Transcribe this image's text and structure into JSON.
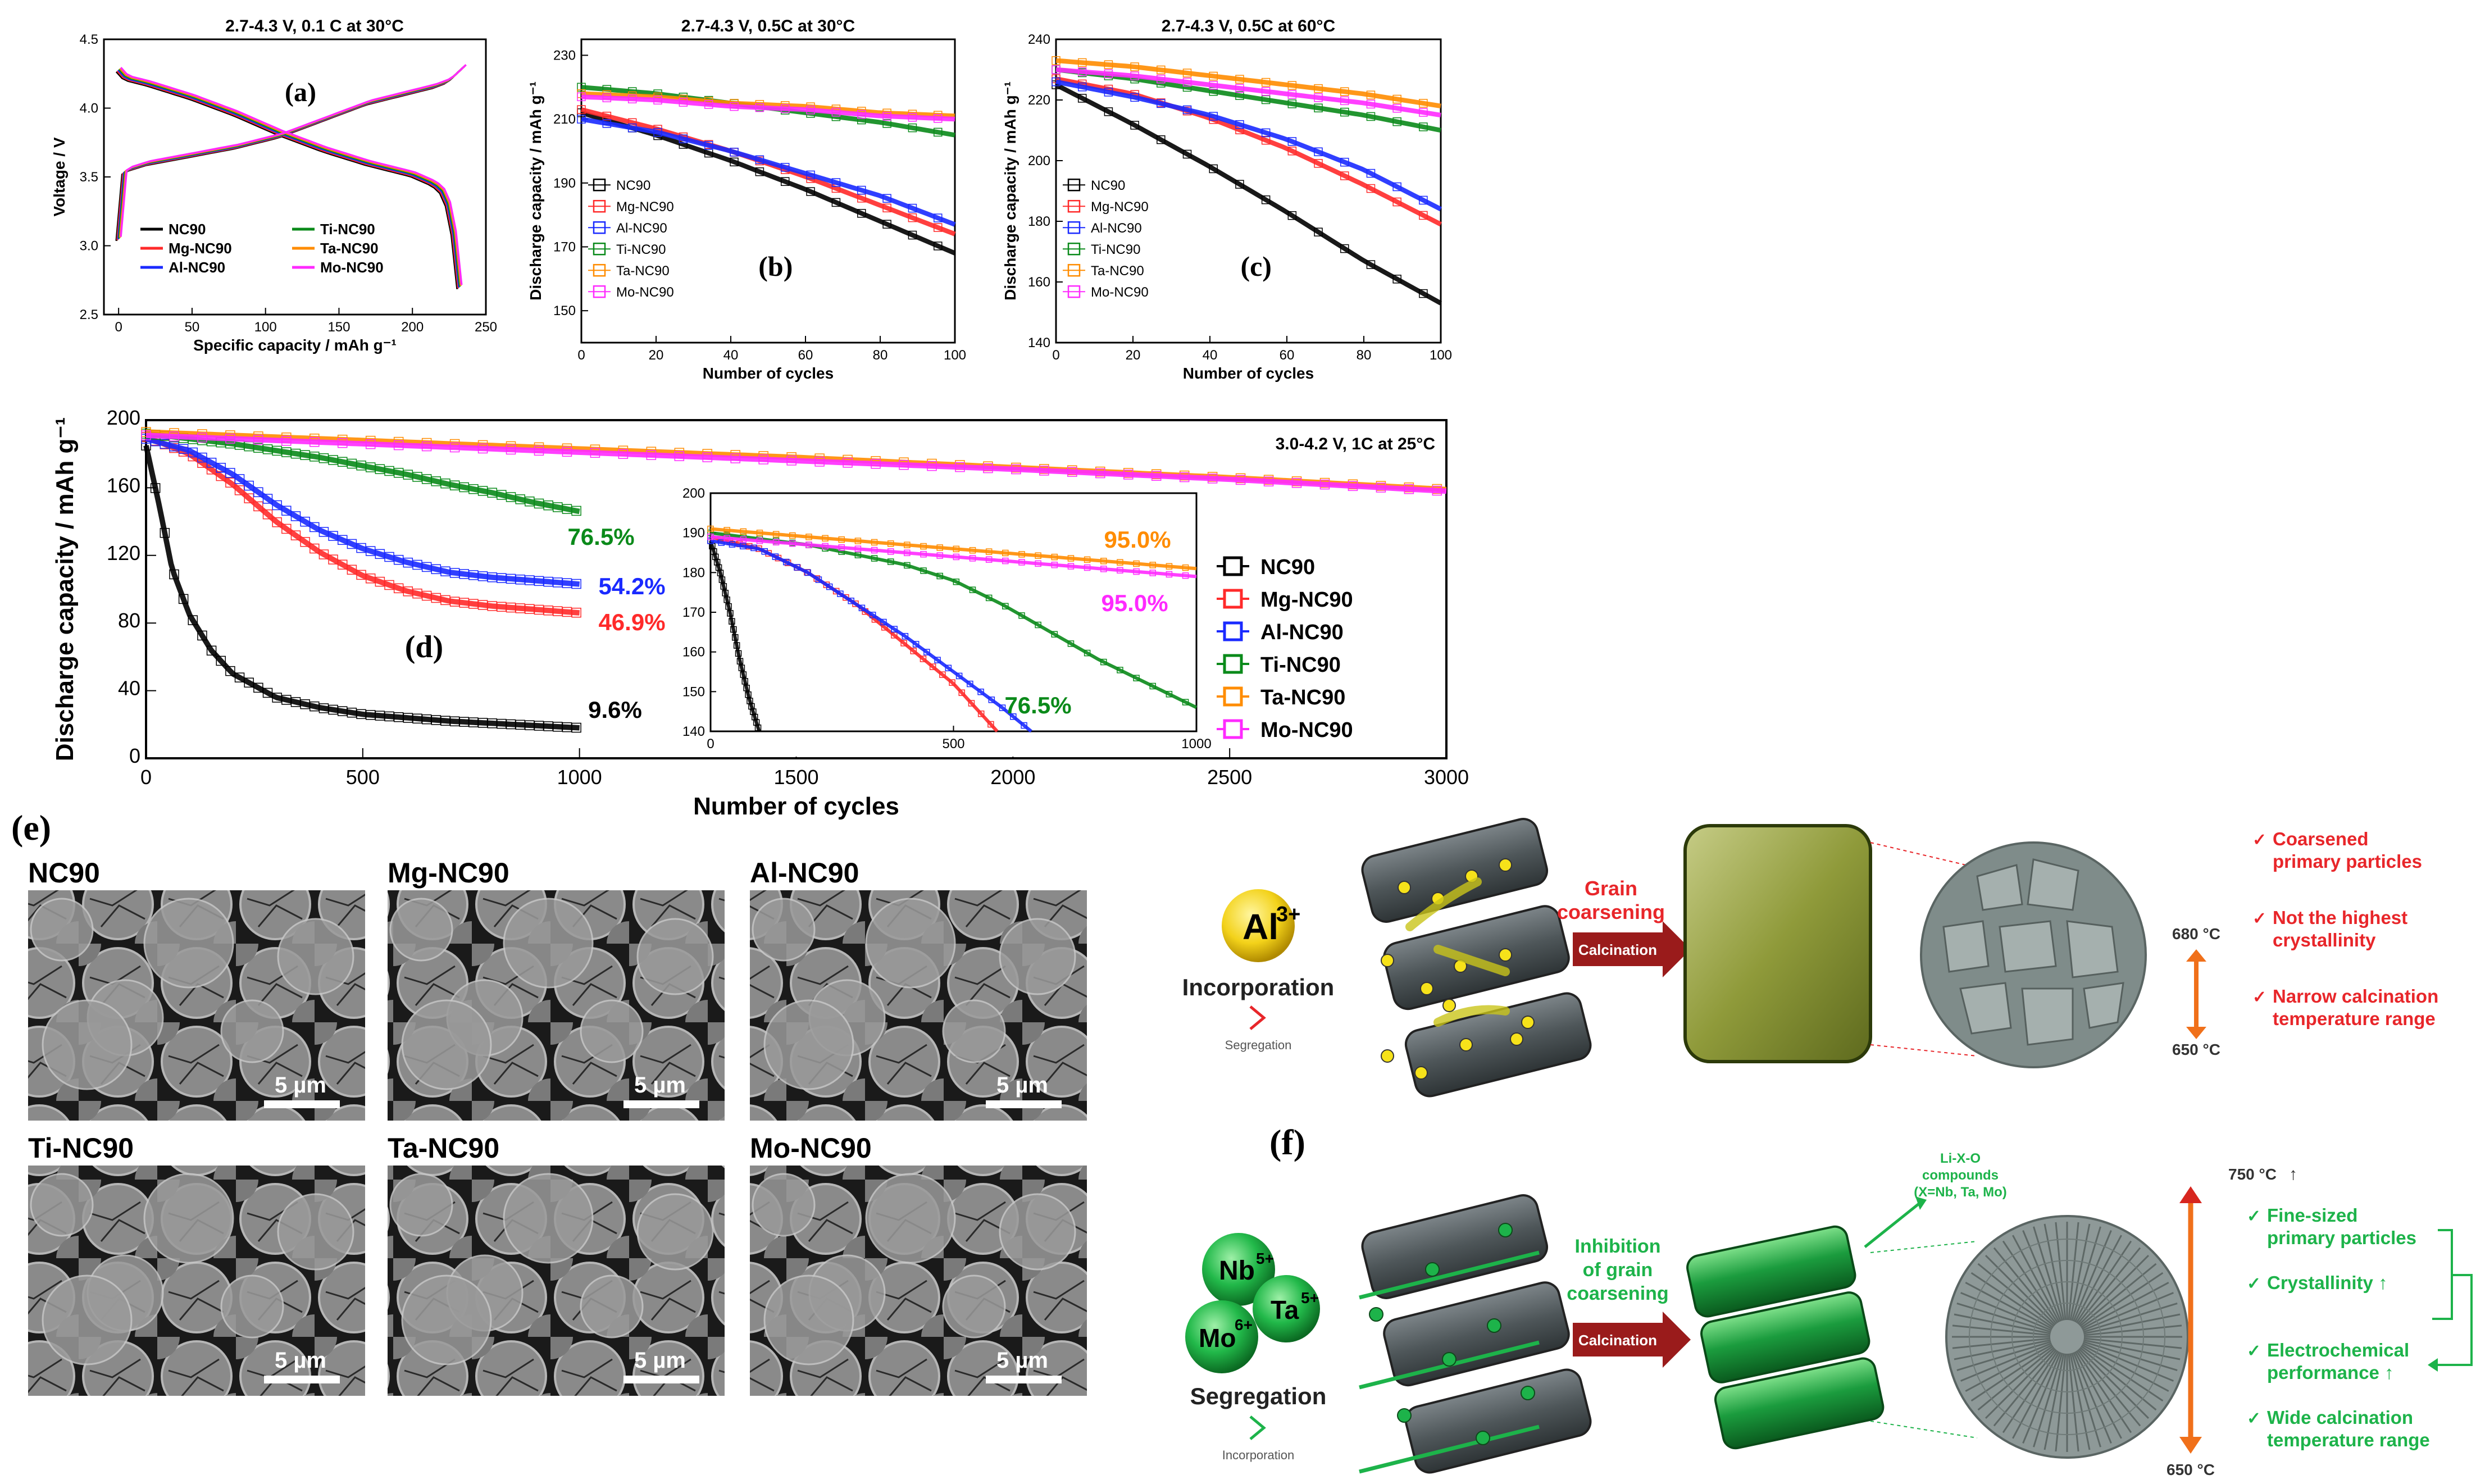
{
  "colors": {
    "NC90": "#000000",
    "Mg-NC90": "#ff2a2a",
    "Al-NC90": "#1a2aff",
    "Ti-NC90": "#0a8a1a",
    "Ta-NC90": "#ff8c00",
    "Mo-NC90": "#ff2aff",
    "schematic_red": "#e8262a",
    "schematic_green": "#1db34a",
    "dark_red_arrow": "#9a1b1b"
  },
  "chart_data": [
    {
      "id": "a",
      "type": "line",
      "panel_label": "(a)",
      "title": "2.7-4.3 V, 0.1 C at 30°C",
      "xlabel": "Specific capacity / mAh g⁻¹",
      "ylabel": "Voltage / V",
      "xlim": [
        -10,
        250
      ],
      "ylim": [
        2.5,
        4.5
      ],
      "xticks": [
        0,
        50,
        100,
        150,
        200,
        250
      ],
      "yticks": [
        2.5,
        3.0,
        3.5,
        4.0,
        4.5
      ],
      "legend": [
        "NC90",
        "Mg-NC90",
        "Al-NC90",
        "Ti-NC90",
        "Ta-NC90",
        "Mo-NC90"
      ],
      "legend_placement": "bottom-left",
      "charge": {
        "x": [
          0,
          2,
          5,
          20,
          50,
          80,
          110,
          140,
          170,
          200,
          215,
          225,
          232,
          235
        ],
        "y": [
          3.05,
          3.5,
          3.55,
          3.6,
          3.66,
          3.72,
          3.8,
          3.92,
          4.04,
          4.12,
          4.16,
          4.2,
          4.27,
          4.3
        ]
      },
      "discharge": {
        "x": [
          0,
          5,
          20,
          50,
          80,
          110,
          140,
          170,
          200,
          215,
          222,
          227,
          230,
          232
        ],
        "y": [
          4.28,
          4.22,
          4.18,
          4.08,
          3.96,
          3.82,
          3.7,
          3.6,
          3.52,
          3.45,
          3.38,
          3.2,
          2.9,
          2.7
        ]
      }
    },
    {
      "id": "b",
      "type": "scatter",
      "panel_label": "(b)",
      "title": "2.7-4.3 V, 0.5C at 30°C",
      "xlabel": "Number of cycles",
      "ylabel": "Discharge capacity / mAh g⁻¹",
      "xlim": [
        0,
        100
      ],
      "ylim": [
        140,
        235
      ],
      "xticks": [
        0,
        20,
        40,
        60,
        80,
        100
      ],
      "yticks": [
        150,
        170,
        190,
        210,
        230
      ],
      "legend_placement": "bottom-left",
      "series": [
        {
          "name": "NC90",
          "x": [
            0,
            20,
            40,
            60,
            80,
            100
          ],
          "y": [
            212,
            205,
            197,
            188,
            178,
            168
          ]
        },
        {
          "name": "Mg-NC90",
          "x": [
            0,
            20,
            40,
            60,
            80,
            100
          ],
          "y": [
            213,
            207,
            200,
            192,
            183,
            174
          ]
        },
        {
          "name": "Al-NC90",
          "x": [
            0,
            20,
            40,
            60,
            80,
            100
          ],
          "y": [
            210,
            206,
            200,
            193,
            186,
            177
          ]
        },
        {
          "name": "Ti-NC90",
          "x": [
            0,
            20,
            40,
            60,
            80,
            100
          ],
          "y": [
            220,
            218,
            215,
            212,
            209,
            205
          ]
        },
        {
          "name": "Ta-NC90",
          "x": [
            0,
            20,
            40,
            60,
            80,
            100
          ],
          "y": [
            218,
            217,
            215,
            214,
            212,
            211
          ]
        },
        {
          "name": "Mo-NC90",
          "x": [
            0,
            20,
            40,
            60,
            80,
            100
          ],
          "y": [
            217,
            216,
            214,
            213,
            211,
            210
          ]
        }
      ]
    },
    {
      "id": "c",
      "type": "scatter",
      "panel_label": "(c)",
      "title": "2.7-4.3 V, 0.5C at 60°C",
      "xlabel": "Number of cycles",
      "ylabel": "Discharge capacity / mAh g⁻¹",
      "xlim": [
        0,
        100
      ],
      "ylim": [
        140,
        240
      ],
      "xticks": [
        0,
        20,
        40,
        60,
        80,
        100
      ],
      "yticks": [
        140,
        160,
        180,
        200,
        220,
        240
      ],
      "legend_placement": "bottom-left",
      "series": [
        {
          "name": "NC90",
          "x": [
            0,
            20,
            40,
            60,
            80,
            100
          ],
          "y": [
            225,
            212,
            198,
            183,
            167,
            153
          ]
        },
        {
          "name": "Mg-NC90",
          "x": [
            0,
            20,
            40,
            60,
            80,
            100
          ],
          "y": [
            227,
            222,
            214,
            204,
            192,
            179
          ]
        },
        {
          "name": "Al-NC90",
          "x": [
            0,
            20,
            40,
            60,
            80,
            100
          ],
          "y": [
            226,
            221,
            215,
            207,
            197,
            184
          ]
        },
        {
          "name": "Ti-NC90",
          "x": [
            0,
            20,
            40,
            60,
            80,
            100
          ],
          "y": [
            230,
            227,
            223,
            219,
            215,
            210
          ]
        },
        {
          "name": "Ta-NC90",
          "x": [
            0,
            20,
            40,
            60,
            80,
            100
          ],
          "y": [
            233,
            231,
            228,
            225,
            222,
            218
          ]
        },
        {
          "name": "Mo-NC90",
          "x": [
            0,
            20,
            40,
            60,
            80,
            100
          ],
          "y": [
            230,
            228,
            225,
            222,
            219,
            215
          ]
        }
      ]
    },
    {
      "id": "d",
      "type": "scatter",
      "panel_label": "(d)",
      "title": "3.0-4.2 V, 1C  at 25°C",
      "xlabel": "Number of cycles",
      "ylabel": "Discharge capacity / mAh g⁻¹",
      "xlim": [
        0,
        3000
      ],
      "ylim": [
        0,
        200
      ],
      "xticks": [
        0,
        500,
        1000,
        1500,
        2000,
        2500,
        3000
      ],
      "yticks": [
        0,
        40,
        80,
        120,
        160,
        200
      ],
      "legend_placement": "right",
      "series": [
        {
          "name": "NC90",
          "x": [
            0,
            30,
            60,
            100,
            150,
            200,
            300,
            400,
            500,
            700,
            1000
          ],
          "y": [
            185,
            150,
            112,
            85,
            64,
            50,
            36,
            30,
            26,
            22,
            18
          ]
        },
        {
          "name": "Mg-NC90",
          "x": [
            0,
            100,
            200,
            300,
            400,
            500,
            600,
            700,
            800,
            1000
          ],
          "y": [
            190,
            180,
            162,
            140,
            122,
            108,
            99,
            93,
            90,
            86
          ]
        },
        {
          "name": "Al-NC90",
          "x": [
            0,
            100,
            200,
            300,
            400,
            500,
            600,
            700,
            800,
            1000
          ],
          "y": [
            189,
            182,
            168,
            150,
            135,
            124,
            116,
            110,
            107,
            103
          ]
        },
        {
          "name": "Ti-NC90",
          "x": [
            0,
            200,
            400,
            500,
            600,
            700,
            800,
            900,
            1000
          ],
          "y": [
            192,
            186,
            178,
            173,
            168,
            162,
            157,
            151,
            146
          ]
        },
        {
          "name": "Ta-NC90",
          "x": [
            0,
            500,
            1000,
            1500,
            2000,
            2500,
            3000
          ],
          "y": [
            193,
            188,
            183,
            178,
            172,
            166,
            159
          ]
        },
        {
          "name": "Mo-NC90",
          "x": [
            0,
            500,
            1000,
            1500,
            2000,
            2500,
            3000
          ],
          "y": [
            191,
            186,
            181,
            176,
            171,
            165,
            158
          ]
        }
      ],
      "annotations": [
        {
          "text": "76.5%",
          "series": "Ti-NC90"
        },
        {
          "text": "54.2%",
          "series": "Al-NC90"
        },
        {
          "text": "46.9%",
          "series": "Mg-NC90"
        },
        {
          "text": "9.6%",
          "series": "NC90"
        }
      ],
      "inset": {
        "xlim": [
          0,
          1000
        ],
        "ylim": [
          140,
          200
        ],
        "xticks": [
          0,
          500,
          1000
        ],
        "yticks": [
          140,
          150,
          160,
          170,
          180,
          190,
          200
        ],
        "series": [
          {
            "name": "NC90",
            "x": [
              0,
              20,
              40,
              60,
              80,
              100
            ],
            "y": [
              188,
              180,
              170,
              158,
              148,
              140
            ]
          },
          {
            "name": "Mg-NC90",
            "x": [
              0,
              100,
              200,
              300,
              400,
              500,
              590
            ],
            "y": [
              189,
              186,
              180,
              172,
              162,
              152,
              140
            ]
          },
          {
            "name": "Al-NC90",
            "x": [
              0,
              100,
              200,
              300,
              400,
              500,
              600,
              660
            ],
            "y": [
              188,
              186,
              180,
              172,
              164,
              155,
              146,
              140
            ]
          },
          {
            "name": "Ti-NC90",
            "x": [
              0,
              200,
              400,
              500,
              600,
              700,
              800,
              900,
              1000
            ],
            "y": [
              190,
              187,
              182,
              178,
              172,
              165,
              158,
              152,
              146
            ]
          },
          {
            "name": "Ta-NC90",
            "x": [
              0,
              200,
              400,
              600,
              800,
              1000
            ],
            "y": [
              191,
              189,
              187,
              185,
              183,
              181
            ]
          },
          {
            "name": "Mo-NC90",
            "x": [
              0,
              200,
              400,
              600,
              800,
              1000
            ],
            "y": [
              189,
              187,
              185,
              183,
              181,
              179
            ]
          }
        ],
        "annotations": [
          {
            "text": "95.0%",
            "series": "Ta-NC90"
          },
          {
            "text": "95.0%",
            "series": "Mo-NC90"
          },
          {
            "text": "76.5%",
            "series": "Ti-NC90"
          }
        ]
      }
    }
  ],
  "panel_e": {
    "label": "(e)",
    "images": [
      {
        "name": "NC90",
        "scale": "5 µm"
      },
      {
        "name": "Mg-NC90",
        "scale": "5 µm"
      },
      {
        "name": "Al-NC90",
        "scale": "5 µm"
      },
      {
        "name": "Ti-NC90",
        "scale": "5 µm"
      },
      {
        "name": "Ta-NC90",
        "scale": "5 µm"
      },
      {
        "name": "Mo-NC90",
        "scale": "5 µm"
      }
    ]
  },
  "panel_f": {
    "label": "(f)",
    "top": {
      "ion": "Al",
      "ion_charge": "3+",
      "incorporation": "Incorporation",
      "segregation_small": "Segregation",
      "arrow_label_1": "Grain",
      "arrow_label_2": "coarsening",
      "calcination": "Calcination",
      "temp_high": "680 °C",
      "temp_low": "650 °C",
      "notes": [
        [
          "Coarsened",
          "primary particles"
        ],
        [
          "Not the highest",
          "crystallinity"
        ],
        [
          "Narrow calcination",
          "temperature range"
        ]
      ]
    },
    "bottom": {
      "ions": [
        {
          "el": "Nb",
          "ch": "5+"
        },
        {
          "el": "Ta",
          "ch": "5+"
        },
        {
          "el": "Mo",
          "ch": "6+"
        }
      ],
      "segregation": "Segregation",
      "incorporation_small": "Incorporation",
      "arrow_label_1": "Inhibition",
      "arrow_label_2": "of grain",
      "arrow_label_3": "coarsening",
      "calcination": "Calcination",
      "lixo_1": "Li-X-O",
      "lixo_2": "compounds",
      "lixo_3": "(X=Nb, Ta, Mo)",
      "temp_high": "750 °C",
      "temp_high_arrow": "↑",
      "temp_low": "650 °C",
      "notes": [
        [
          "Fine-sized",
          "primary particles"
        ],
        [
          "Crystallinity ↑"
        ],
        [
          "Electrochemical",
          "performance ↑"
        ],
        [
          "Wide calcination",
          "temperature range"
        ]
      ]
    }
  }
}
